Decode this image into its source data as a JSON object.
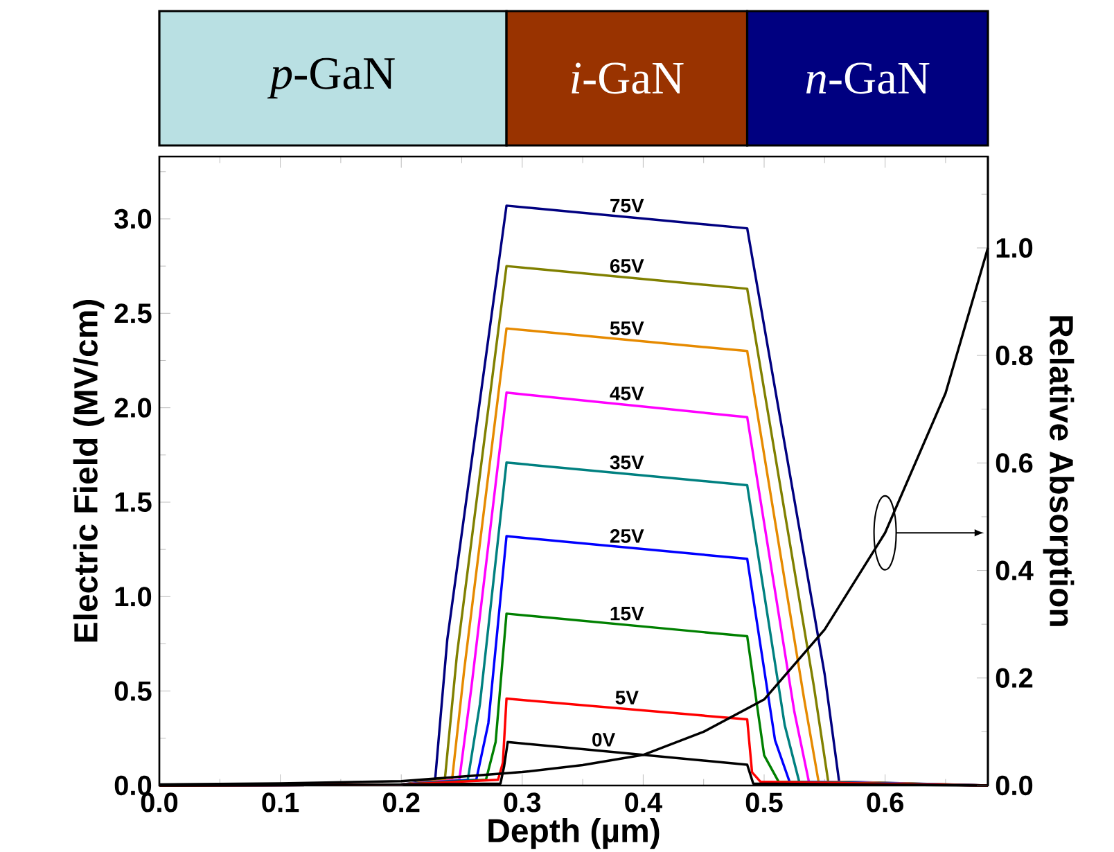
{
  "chart_data": {
    "type": "line",
    "xlabel": "Depth (µm)",
    "ylabel": "Electric Field (MV/cm)",
    "y2label": "Relative Absorption",
    "xlim": [
      0,
      0.685
    ],
    "ylim": [
      0,
      3.33
    ],
    "y2lim": [
      0,
      1.17
    ],
    "xticks": [
      {
        "value": 0,
        "label": "0.0"
      },
      {
        "value": 0.1,
        "label": "0.1"
      },
      {
        "value": 0.2,
        "label": "0.2"
      },
      {
        "value": 0.3,
        "label": "0.3"
      },
      {
        "value": 0.4,
        "label": "0.4"
      },
      {
        "value": 0.5,
        "label": "0.5"
      },
      {
        "value": 0.6,
        "label": "0.6"
      },
      {
        "value": 0.05,
        "label": null
      },
      {
        "value": 0.15,
        "label": null
      },
      {
        "value": 0.25,
        "label": null
      },
      {
        "value": 0.35,
        "label": null
      },
      {
        "value": 0.45,
        "label": null
      },
      {
        "value": 0.55,
        "label": null
      },
      {
        "value": 0.65,
        "label": null
      }
    ],
    "yticks": [
      {
        "value": 0,
        "label": "0.0"
      },
      {
        "value": 0.5,
        "label": "0.5"
      },
      {
        "value": 1,
        "label": "1.0"
      },
      {
        "value": 1.5,
        "label": "1.5"
      },
      {
        "value": 2,
        "label": "2.0"
      },
      {
        "value": 2.5,
        "label": "2.5"
      },
      {
        "value": 3,
        "label": "3.0"
      },
      {
        "value": 0.25,
        "label": null
      },
      {
        "value": 0.75,
        "label": null
      },
      {
        "value": 1.25,
        "label": null
      },
      {
        "value": 1.75,
        "label": null
      },
      {
        "value": 2.25,
        "label": null
      },
      {
        "value": 2.75,
        "label": null
      },
      {
        "value": 3.25,
        "label": null
      }
    ],
    "y2ticks": [
      {
        "value": 0,
        "label": "0.0"
      },
      {
        "value": 0.2,
        "label": "0.2"
      },
      {
        "value": 0.4,
        "label": "0.4"
      },
      {
        "value": 0.6,
        "label": "0.6"
      },
      {
        "value": 0.8,
        "label": "0.8"
      },
      {
        "value": 1,
        "label": "1.0"
      },
      {
        "value": 0.1,
        "label": null
      },
      {
        "value": 0.3,
        "label": null
      },
      {
        "value": 0.5,
        "label": null
      },
      {
        "value": 0.7,
        "label": null
      },
      {
        "value": 0.9,
        "label": null
      },
      {
        "value": 1.1,
        "label": null
      }
    ],
    "annotations": [
      "*p*-GaN",
      "*i*-GaN",
      "*n*-GaN"
    ],
    "series": [
      {
        "name": "75V",
        "color": "#000080",
        "x": [
          0,
          0.2,
          0.228,
          0.238,
          0.287,
          0.486,
          0.55,
          0.562,
          0.685
        ],
        "values": [
          0,
          0.005,
          0.03,
          0.77,
          3.07,
          2.95,
          0.59,
          0.02,
          0
        ]
      },
      {
        "name": "65V",
        "color": "#808000",
        "x": [
          0,
          0.2,
          0.236,
          0.246,
          0.287,
          0.486,
          0.541,
          0.553,
          0.685
        ],
        "values": [
          0,
          0.005,
          0.03,
          0.69,
          2.75,
          2.63,
          0.53,
          0.02,
          0
        ]
      },
      {
        "name": "55V",
        "color": "#e68a00",
        "x": [
          0,
          0.2,
          0.242,
          0.252,
          0.287,
          0.486,
          0.533,
          0.545,
          0.685
        ],
        "values": [
          0,
          0.005,
          0.03,
          0.61,
          2.42,
          2.3,
          0.46,
          0.02,
          0
        ]
      },
      {
        "name": "45V",
        "color": "#ff00ff",
        "x": [
          0,
          0.2,
          0.248,
          0.258,
          0.287,
          0.486,
          0.525,
          0.537,
          0.685
        ],
        "values": [
          0,
          0.005,
          0.03,
          0.52,
          2.08,
          1.95,
          0.39,
          0.02,
          0
        ]
      },
      {
        "name": "35V",
        "color": "#008080",
        "x": [
          0,
          0.2,
          0.255,
          0.265,
          0.287,
          0.486,
          0.517,
          0.529,
          0.685
        ],
        "values": [
          0,
          0.005,
          0.03,
          0.43,
          1.71,
          1.59,
          0.32,
          0.02,
          0
        ]
      },
      {
        "name": "25V",
        "color": "#0000ff",
        "x": [
          0,
          0.2,
          0.262,
          0.272,
          0.287,
          0.486,
          0.509,
          0.521,
          0.685
        ],
        "values": [
          0,
          0.005,
          0.03,
          0.33,
          1.32,
          1.2,
          0.24,
          0.02,
          0
        ]
      },
      {
        "name": "15V",
        "color": "#008000",
        "x": [
          0,
          0.2,
          0.27,
          0.278,
          0.287,
          0.486,
          0.5,
          0.512,
          0.685
        ],
        "values": [
          0,
          0.005,
          0.03,
          0.23,
          0.91,
          0.79,
          0.16,
          0.02,
          0
        ]
      },
      {
        "name": "5V",
        "color": "#ff0000",
        "x": [
          0,
          0.2,
          0.28,
          0.284,
          0.287,
          0.486,
          0.49,
          0.497,
          0.685
        ],
        "values": [
          0,
          0.005,
          0.03,
          0.12,
          0.46,
          0.35,
          0.07,
          0.02,
          0
        ]
      },
      {
        "name": "0V",
        "color": "#000000",
        "x": [
          0,
          0.2,
          0.282,
          0.285,
          0.288,
          0.486,
          0.489,
          0.491,
          0.685
        ],
        "values": [
          0,
          0.005,
          0.01,
          0.1,
          0.23,
          0.11,
          0.05,
          0.01,
          0
        ]
      },
      {
        "color": "#000000",
        "axis": "y2",
        "x": [
          0,
          0.1,
          0.2,
          0.3,
          0.35,
          0.4,
          0.45,
          0.5,
          0.55,
          0.6,
          0.65,
          0.685
        ],
        "values": [
          0.002,
          0.004,
          0.008,
          0.025,
          0.038,
          0.057,
          0.1,
          0.16,
          0.29,
          0.47,
          0.73,
          1.0
        ]
      }
    ]
  }
}
